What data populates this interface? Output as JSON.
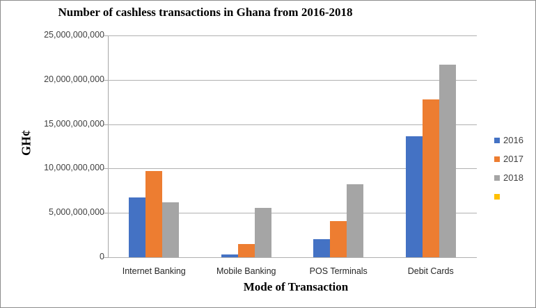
{
  "chart_data": {
    "type": "bar",
    "title": "Number of cashless transactions in Ghana from 2016-2018",
    "xlabel": "Mode of Transaction",
    "ylabel": "GH¢",
    "categories": [
      "Internet Banking",
      "Mobile Banking",
      "POS Terminals",
      "Debit Cards"
    ],
    "series": [
      {
        "name": "2016",
        "color": "#4472c4",
        "values": [
          6750000000,
          350000000,
          2050000000,
          13600000000
        ]
      },
      {
        "name": "2017",
        "color": "#ed7d31",
        "values": [
          9700000000,
          1500000000,
          4100000000,
          17800000000
        ]
      },
      {
        "name": "2018",
        "color": "#a5a5a5",
        "values": [
          6200000000,
          5600000000,
          8250000000,
          21700000000
        ]
      },
      {
        "name": "",
        "color": "#ffc000",
        "values": []
      }
    ],
    "ylim": [
      0,
      25000000000
    ],
    "yticks": [
      "0",
      "5,000,000,000",
      "10,000,000,000",
      "15,000,000,000",
      "20,000,000,000",
      "25,000,000,000"
    ],
    "ytick_values": [
      0,
      5000000000,
      10000000000,
      15000000000,
      20000000000,
      25000000000
    ],
    "grid": true,
    "legend_position": "right"
  }
}
